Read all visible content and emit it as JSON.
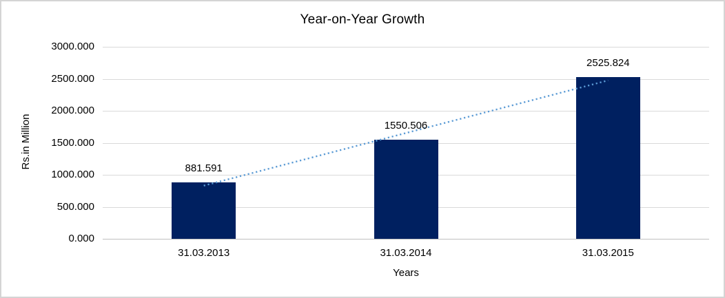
{
  "chart_data": {
    "type": "bar",
    "title": "Year-on-Year Growth",
    "xlabel": "Years",
    "ylabel": "Rs.in Million",
    "categories": [
      "31.03.2013",
      "31.03.2014",
      "31.03.2015"
    ],
    "values": [
      881.591,
      1550.506,
      2525.824
    ],
    "data_labels": [
      "881.591",
      "1550.506",
      "2525.824"
    ],
    "ylim": [
      0,
      3000
    ],
    "yticks": {
      "values": [
        0,
        500,
        1000,
        1500,
        2000,
        2500,
        3000
      ],
      "labels": [
        "0.000",
        "500.000",
        "1000.000",
        "1500.000",
        "2000.000",
        "2500.000",
        "3000.000"
      ]
    },
    "grid": "horizontal",
    "legend": "none",
    "trendline": {
      "type": "linear",
      "style": "dotted",
      "color": "#5b9bd5"
    },
    "colors": {
      "bar": "#002060",
      "gridline": "#d9d9d9",
      "axis_line": "#bfbfbf",
      "text": "#000000",
      "frame_border": "#d4d4d4",
      "background": "#ffffff"
    }
  }
}
